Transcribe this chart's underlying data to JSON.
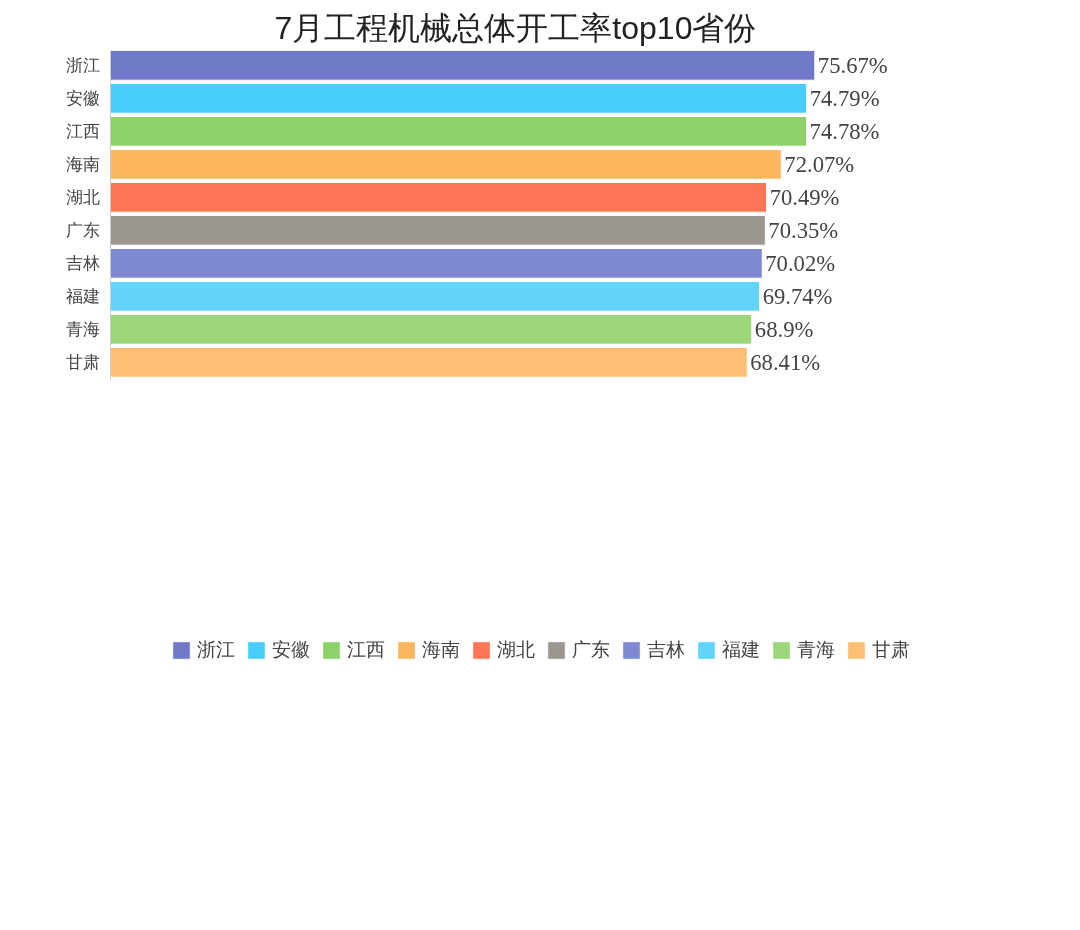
{
  "chart_data": {
    "type": "bar",
    "orientation": "horizontal",
    "title": "7月工程机械总体开工率top10省份",
    "categories": [
      "浙江",
      "安徽",
      "江西",
      "海南",
      "湖北",
      "广东",
      "吉林",
      "福建",
      "青海",
      "甘肃"
    ],
    "series": [
      {
        "name": "浙江",
        "color": "#7078c8",
        "values": [
          75.67,
          null,
          null,
          null,
          null,
          null,
          null,
          null,
          null,
          null
        ],
        "value_labels": [
          "75.67%",
          null,
          null,
          null,
          null,
          null,
          null,
          null,
          null,
          null
        ]
      },
      {
        "name": "安徽",
        "color": "#48cdfc",
        "values": [
          null,
          74.79,
          null,
          null,
          null,
          null,
          null,
          null,
          null,
          null
        ],
        "value_labels": [
          null,
          "74.79%",
          null,
          null,
          null,
          null,
          null,
          null,
          null,
          null
        ]
      },
      {
        "name": "江西",
        "color": "#8ed06a",
        "values": [
          null,
          null,
          74.78,
          null,
          null,
          null,
          null,
          null,
          null,
          null
        ],
        "value_labels": [
          null,
          null,
          "74.78%",
          null,
          null,
          null,
          null,
          null,
          null,
          null
        ]
      },
      {
        "name": "海南",
        "color": "#fdb55e",
        "values": [
          null,
          null,
          null,
          72.07,
          null,
          null,
          null,
          null,
          null,
          null
        ],
        "value_labels": [
          null,
          null,
          null,
          "72.07%",
          null,
          null,
          null,
          null,
          null,
          null
        ]
      },
      {
        "name": "湖北",
        "color": "#fd7557",
        "values": [
          null,
          null,
          null,
          null,
          70.49,
          null,
          null,
          null,
          null,
          null
        ],
        "value_labels": [
          null,
          null,
          null,
          null,
          "70.49%",
          null,
          null,
          null,
          null,
          null
        ]
      },
      {
        "name": "广东",
        "color": "#9c9690",
        "values": [
          null,
          null,
          null,
          null,
          null,
          70.35,
          null,
          null,
          null,
          null
        ],
        "value_labels": [
          null,
          null,
          null,
          null,
          null,
          "70.35%",
          null,
          null,
          null,
          null
        ]
      },
      {
        "name": "吉林",
        "color": "#7f88d2",
        "values": [
          null,
          null,
          null,
          null,
          null,
          null,
          70.02,
          null,
          null,
          null
        ],
        "value_labels": [
          null,
          null,
          null,
          null,
          null,
          null,
          "70.02%",
          null,
          null,
          null
        ]
      },
      {
        "name": "福建",
        "color": "#63d4fc",
        "values": [
          null,
          null,
          null,
          null,
          null,
          null,
          null,
          69.74,
          null,
          null
        ],
        "value_labels": [
          null,
          null,
          null,
          null,
          null,
          null,
          null,
          "69.74%",
          null,
          null
        ]
      },
      {
        "name": "青海",
        "color": "#9cd67a",
        "values": [
          null,
          null,
          null,
          null,
          null,
          null,
          null,
          null,
          68.9,
          null
        ],
        "value_labels": [
          null,
          null,
          null,
          null,
          null,
          null,
          null,
          null,
          "68.9%",
          null
        ]
      },
      {
        "name": "甘肃",
        "color": "#fdbf74",
        "values": [
          null,
          null,
          null,
          null,
          null,
          null,
          null,
          null,
          null,
          68.41
        ],
        "value_labels": [
          null,
          null,
          null,
          null,
          null,
          null,
          null,
          null,
          null,
          "68.41%"
        ]
      }
    ],
    "tick_labels": "y",
    "legend": "bottom"
  }
}
